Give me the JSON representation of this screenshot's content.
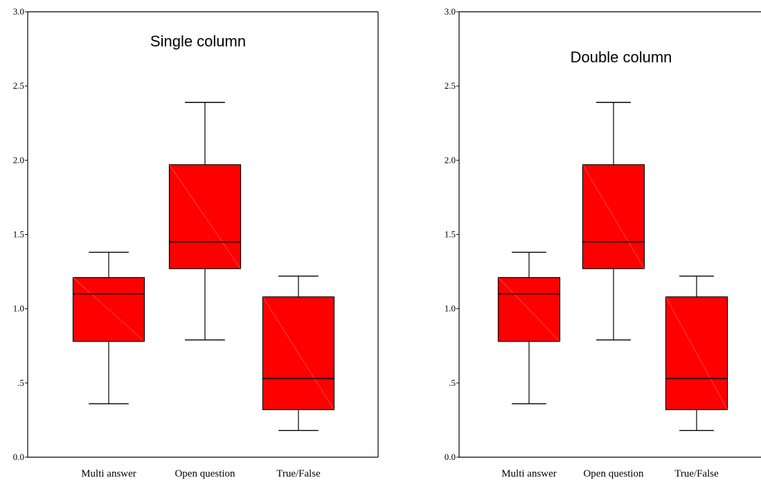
{
  "chart_data": [
    {
      "type": "box",
      "title": "Single column",
      "categories": [
        "Multi answer",
        "Open question",
        "True/False"
      ],
      "ylim": [
        0,
        3
      ],
      "yticks": [
        "0.0",
        ".5",
        "1.0",
        "1.5",
        "2.0",
        "2.5",
        "3.0"
      ],
      "boxes": [
        {
          "label": "Multi answer",
          "min": 0.36,
          "q1": 0.78,
          "median": 1.1,
          "q3": 1.21,
          "max": 1.38
        },
        {
          "label": "Open question",
          "min": 0.79,
          "q1": 1.27,
          "median": 1.45,
          "q3": 1.97,
          "max": 2.39
        },
        {
          "label": "True/False",
          "min": 0.18,
          "q1": 0.32,
          "median": 0.53,
          "q3": 1.08,
          "max": 1.22
        }
      ],
      "color": "#ff0000"
    },
    {
      "type": "box",
      "title": "Double column",
      "categories": [
        "Multi answer",
        "Open question",
        "True/False"
      ],
      "ylim": [
        0,
        3
      ],
      "yticks": [
        "0.0",
        ".5",
        "1.0",
        "1.5",
        "2.0",
        "2.5",
        "3.0"
      ],
      "boxes": [
        {
          "label": "Multi answer",
          "min": 0.36,
          "q1": 0.78,
          "median": 1.1,
          "q3": 1.21,
          "max": 1.38
        },
        {
          "label": "Open question",
          "min": 0.79,
          "q1": 1.27,
          "median": 1.45,
          "q3": 1.97,
          "max": 2.39
        },
        {
          "label": "True/False",
          "min": 0.18,
          "q1": 0.32,
          "median": 0.53,
          "q3": 1.08,
          "max": 1.22
        }
      ],
      "color": "#ff0000"
    }
  ]
}
